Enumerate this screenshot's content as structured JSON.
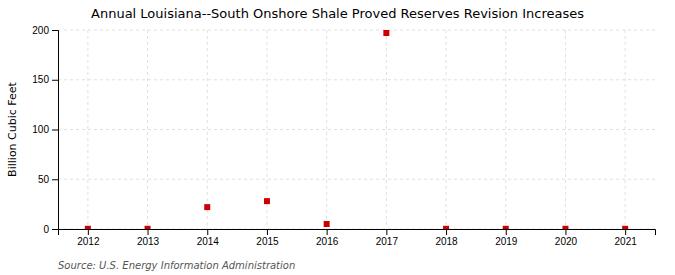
{
  "chart_data": {
    "type": "scatter",
    "title": "Annual Louisiana--South Onshore Shale Proved Reserves Revision Increases",
    "y_label": "Billion Cubic Feet",
    "source": "Source: U.S. Energy Information Administration",
    "x": [
      2012,
      2013,
      2014,
      2015,
      2016,
      2017,
      2018,
      2019,
      2020,
      2021
    ],
    "values": [
      0.2,
      0.2,
      22,
      28,
      5,
      197,
      0.2,
      0.2,
      0.2,
      0.2
    ],
    "color": "#cc0000",
    "marker": "square",
    "xlim": [
      2011.5,
      2021.5
    ],
    "xticks": [
      2012,
      2013,
      2014,
      2015,
      2016,
      2017,
      2018,
      2019,
      2020,
      2021
    ],
    "ylim": [
      0,
      200
    ],
    "yticks": [
      0,
      50,
      100,
      150,
      200
    ],
    "grid": true
  }
}
